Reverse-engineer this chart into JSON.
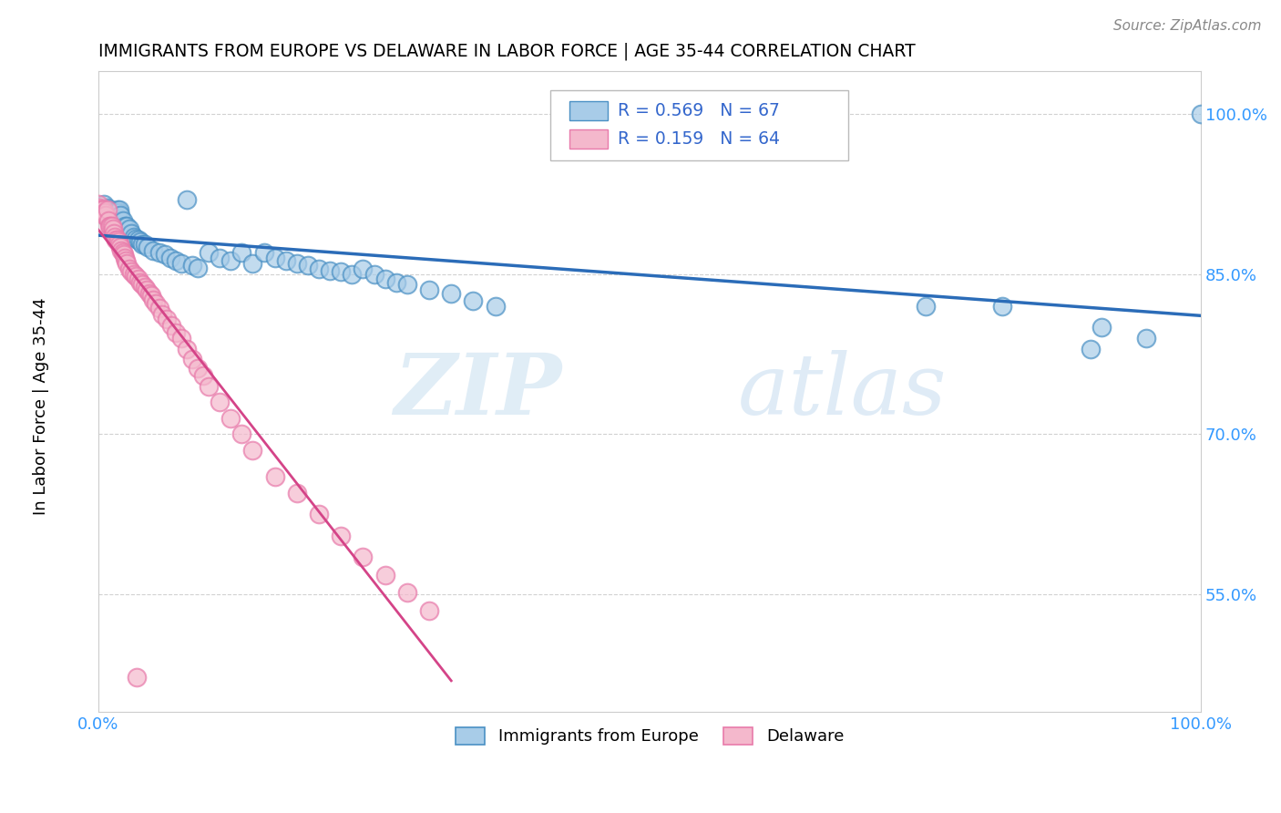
{
  "title": "IMMIGRANTS FROM EUROPE VS DELAWARE IN LABOR FORCE | AGE 35-44 CORRELATION CHART",
  "source": "Source: ZipAtlas.com",
  "ylabel": "In Labor Force | Age 35-44",
  "xlim": [
    0.0,
    1.0
  ],
  "ylim": [
    0.44,
    1.04
  ],
  "yticks": [
    0.55,
    0.7,
    0.85,
    1.0
  ],
  "yticklabels": [
    "55.0%",
    "70.0%",
    "85.0%",
    "100.0%"
  ],
  "R_blue": 0.569,
  "N_blue": 67,
  "R_pink": 0.159,
  "N_pink": 64,
  "legend_labels": [
    "Immigrants from Europe",
    "Delaware"
  ],
  "blue_color": "#a8cce8",
  "pink_color": "#f4b8cc",
  "blue_edge_color": "#4a90c4",
  "pink_edge_color": "#e87aaa",
  "blue_line_color": "#2b6cb8",
  "pink_line_color": "#d44488",
  "watermark_zip": "ZIP",
  "watermark_atlas": "atlas",
  "blue_x": [
    0.003,
    0.005,
    0.006,
    0.007,
    0.008,
    0.009,
    0.01,
    0.011,
    0.012,
    0.013,
    0.014,
    0.015,
    0.016,
    0.017,
    0.018,
    0.019,
    0.02,
    0.022,
    0.024,
    0.026,
    0.028,
    0.03,
    0.032,
    0.034,
    0.036,
    0.038,
    0.04,
    0.042,
    0.045,
    0.05,
    0.055,
    0.06,
    0.065,
    0.07,
    0.075,
    0.08,
    0.085,
    0.09,
    0.1,
    0.11,
    0.12,
    0.13,
    0.14,
    0.15,
    0.16,
    0.17,
    0.18,
    0.19,
    0.2,
    0.21,
    0.22,
    0.23,
    0.24,
    0.25,
    0.26,
    0.27,
    0.28,
    0.3,
    0.32,
    0.34,
    0.36,
    0.75,
    0.82,
    0.9,
    0.91,
    0.95,
    1.0
  ],
  "blue_y": [
    0.91,
    0.915,
    0.91,
    0.91,
    0.912,
    0.91,
    0.908,
    0.905,
    0.905,
    0.908,
    0.905,
    0.905,
    0.905,
    0.91,
    0.908,
    0.91,
    0.905,
    0.9,
    0.895,
    0.895,
    0.892,
    0.888,
    0.885,
    0.883,
    0.882,
    0.88,
    0.878,
    0.878,
    0.875,
    0.872,
    0.87,
    0.868,
    0.865,
    0.862,
    0.86,
    0.92,
    0.858,
    0.856,
    0.87,
    0.865,
    0.862,
    0.87,
    0.86,
    0.87,
    0.865,
    0.862,
    0.86,
    0.858,
    0.855,
    0.853,
    0.852,
    0.85,
    0.855,
    0.85,
    0.845,
    0.842,
    0.84,
    0.835,
    0.832,
    0.825,
    0.82,
    0.82,
    0.82,
    0.78,
    0.8,
    0.79,
    1.0
  ],
  "pink_x": [
    0.0,
    0.001,
    0.002,
    0.003,
    0.004,
    0.005,
    0.006,
    0.007,
    0.008,
    0.009,
    0.01,
    0.011,
    0.012,
    0.013,
    0.014,
    0.015,
    0.016,
    0.017,
    0.018,
    0.019,
    0.02,
    0.021,
    0.022,
    0.023,
    0.024,
    0.025,
    0.026,
    0.028,
    0.03,
    0.032,
    0.034,
    0.036,
    0.038,
    0.04,
    0.042,
    0.044,
    0.046,
    0.048,
    0.05,
    0.052,
    0.055,
    0.058,
    0.062,
    0.066,
    0.07,
    0.075,
    0.08,
    0.085,
    0.09,
    0.095,
    0.1,
    0.11,
    0.12,
    0.13,
    0.14,
    0.16,
    0.18,
    0.2,
    0.22,
    0.24,
    0.26,
    0.28,
    0.3,
    0.035
  ],
  "pink_y": [
    0.915,
    0.912,
    0.91,
    0.91,
    0.91,
    0.905,
    0.908,
    0.905,
    0.91,
    0.9,
    0.895,
    0.895,
    0.895,
    0.892,
    0.888,
    0.885,
    0.882,
    0.882,
    0.88,
    0.878,
    0.875,
    0.872,
    0.87,
    0.868,
    0.865,
    0.862,
    0.86,
    0.855,
    0.852,
    0.85,
    0.848,
    0.845,
    0.842,
    0.84,
    0.838,
    0.835,
    0.832,
    0.83,
    0.826,
    0.822,
    0.818,
    0.812,
    0.808,
    0.802,
    0.795,
    0.79,
    0.78,
    0.77,
    0.762,
    0.755,
    0.745,
    0.73,
    0.715,
    0.7,
    0.685,
    0.66,
    0.645,
    0.625,
    0.605,
    0.585,
    0.568,
    0.552,
    0.535,
    0.472
  ]
}
